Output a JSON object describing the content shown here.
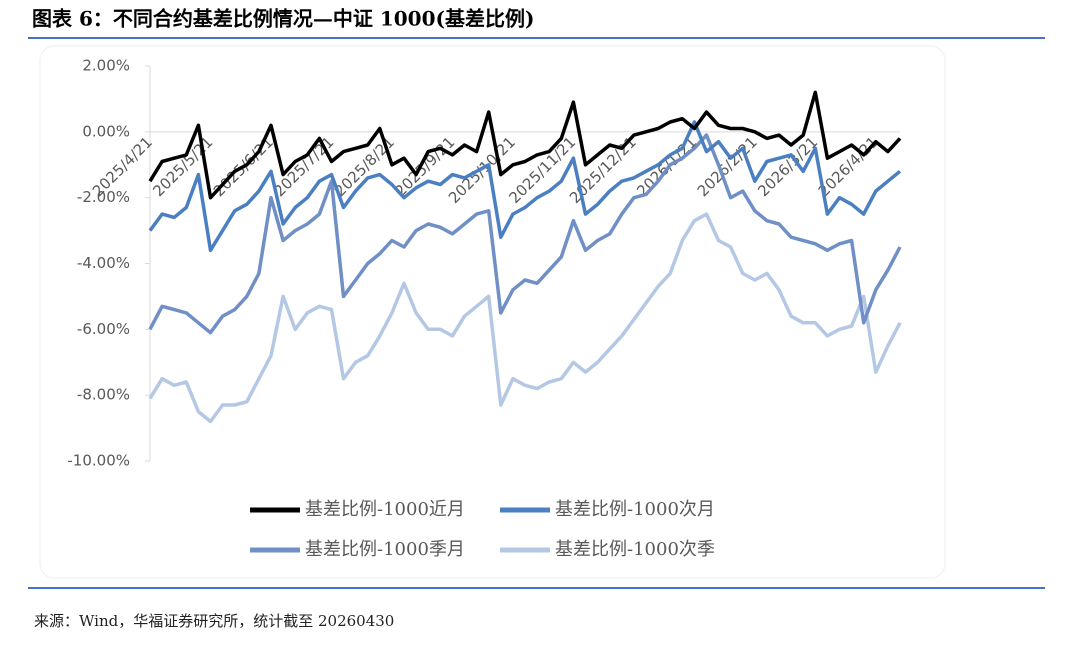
{
  "chart_data": {
    "type": "line",
    "title": "图表 6：不同合约基差比例情况—中证 1000(基差比例)",
    "source": "来源：Wind，华福证券研究所，统计截至 20260430",
    "legend": "bottom",
    "grid": false,
    "categories": [
      "2025/4/21",
      null,
      null,
      null,
      null,
      "2025/5/21",
      null,
      null,
      null,
      null,
      "2025/6/21",
      null,
      null,
      null,
      null,
      "2025/7/21",
      null,
      null,
      null,
      null,
      "2025/8/21",
      null,
      null,
      null,
      null,
      "2025/9/21",
      null,
      null,
      null,
      null,
      "2025/10/21",
      null,
      null,
      null,
      null,
      "2025/11/21",
      null,
      null,
      null,
      null,
      "2025/12/21",
      null,
      null,
      null,
      null,
      "2026/1/21",
      null,
      null,
      null,
      null,
      "2026/2/21",
      null,
      null,
      null,
      null,
      "2026/3/21",
      null,
      null,
      null,
      null,
      "2026/4/21",
      null,
      null
    ],
    "ylim": [
      -10,
      2
    ],
    "yticks": [
      {
        "value": 2,
        "label": "2.00%"
      },
      {
        "value": 0,
        "label": "0.00%"
      },
      {
        "value": -2,
        "label": "-2.00%"
      },
      {
        "value": -4,
        "label": "-4.00%"
      },
      {
        "value": -6,
        "label": "-6.00%"
      },
      {
        "value": -8,
        "label": "-8.00%"
      },
      {
        "value": -10,
        "label": "-10.00%"
      }
    ],
    "series": [
      {
        "name": "基差比例-1000近月",
        "color": "#000000",
        "values": [
          -1.5,
          -0.9,
          -0.8,
          -0.7,
          0.2,
          -2.0,
          -1.6,
          -1.2,
          -1.0,
          -0.6,
          0.2,
          -1.3,
          -0.9,
          -0.7,
          -0.2,
          -0.9,
          -0.6,
          -0.5,
          -0.4,
          0.1,
          -1.0,
          -0.8,
          -1.3,
          -0.6,
          -0.5,
          -0.7,
          -0.4,
          -0.6,
          0.6,
          -1.3,
          -1.0,
          -0.9,
          -0.7,
          -0.6,
          -0.2,
          0.9,
          -1.0,
          -0.7,
          -0.4,
          -0.5,
          -0.1,
          0.0,
          0.1,
          0.3,
          0.4,
          0.1,
          0.6,
          0.2,
          0.1,
          0.1,
          0.0,
          -0.2,
          -0.1,
          -0.4,
          -0.1,
          1.2,
          -0.8,
          -0.6,
          -0.4,
          -0.7,
          -0.3,
          -0.6,
          -0.2
        ]
      },
      {
        "name": "基差比例-1000次月",
        "color": "#4a7fc1",
        "values": [
          -3.0,
          -2.5,
          -2.6,
          -2.3,
          -1.3,
          -3.6,
          -3.0,
          -2.4,
          -2.2,
          -1.8,
          -1.2,
          -2.8,
          -2.3,
          -2.0,
          -1.5,
          -1.3,
          -2.3,
          -1.8,
          -1.4,
          -1.3,
          -1.6,
          -2.0,
          -1.7,
          -1.5,
          -1.6,
          -1.3,
          -1.4,
          -1.2,
          -1.0,
          -3.2,
          -2.5,
          -2.3,
          -2.0,
          -1.8,
          -1.5,
          -0.8,
          -2.5,
          -2.2,
          -1.8,
          -1.5,
          -1.4,
          -1.2,
          -1.0,
          -0.7,
          -0.5,
          0.3,
          -0.6,
          -0.3,
          -0.8,
          -0.5,
          -1.5,
          -0.9,
          -0.8,
          -0.7,
          -1.2,
          -0.5,
          -2.5,
          -2.0,
          -2.2,
          -2.5,
          -1.8,
          -1.5,
          -1.2
        ]
      },
      {
        "name": "基差比例-1000季月",
        "color": "#6f8fc6",
        "values": [
          -6.0,
          -5.3,
          -5.4,
          -5.5,
          -5.8,
          -6.1,
          -5.6,
          -5.4,
          -5.0,
          -4.3,
          -2.0,
          -3.3,
          -3.0,
          -2.8,
          -2.5,
          -1.5,
          -5.0,
          -4.5,
          -4.0,
          -3.7,
          -3.3,
          -3.5,
          -3.0,
          -2.8,
          -2.9,
          -3.1,
          -2.8,
          -2.5,
          -2.4,
          -5.5,
          -4.8,
          -4.5,
          -4.6,
          -4.2,
          -3.8,
          -2.7,
          -3.6,
          -3.3,
          -3.1,
          -2.5,
          -2.0,
          -1.9,
          -1.5,
          -1.0,
          -0.8,
          -0.5,
          -0.1,
          -1.0,
          -2.0,
          -1.8,
          -2.4,
          -2.7,
          -2.8,
          -3.2,
          -3.3,
          -3.4,
          -3.6,
          -3.4,
          -3.3,
          -5.8,
          -4.8,
          -4.2,
          -3.5
        ]
      },
      {
        "name": "基差比例-1000次季",
        "color": "#b4c7e4",
        "values": [
          -8.1,
          -7.5,
          -7.7,
          -7.6,
          -8.5,
          -8.8,
          -8.3,
          -8.3,
          -8.2,
          -7.5,
          -6.8,
          -5.0,
          -6.0,
          -5.5,
          -5.3,
          -5.4,
          -7.5,
          -7.0,
          -6.8,
          -6.2,
          -5.5,
          -4.6,
          -5.5,
          -6.0,
          -6.0,
          -6.2,
          -5.6,
          -5.3,
          -5.0,
          -8.3,
          -7.5,
          -7.7,
          -7.8,
          -7.6,
          -7.5,
          -7.0,
          -7.3,
          -7.0,
          -6.6,
          -6.2,
          -5.7,
          -5.2,
          -4.7,
          -4.3,
          -3.3,
          -2.7,
          -2.5,
          -3.3,
          -3.5,
          -4.3,
          -4.5,
          -4.3,
          -4.8,
          -5.6,
          -5.8,
          -5.8,
          -6.2,
          -6.0,
          -5.9,
          -5.0,
          -7.3,
          -6.5,
          -5.8
        ]
      }
    ]
  }
}
